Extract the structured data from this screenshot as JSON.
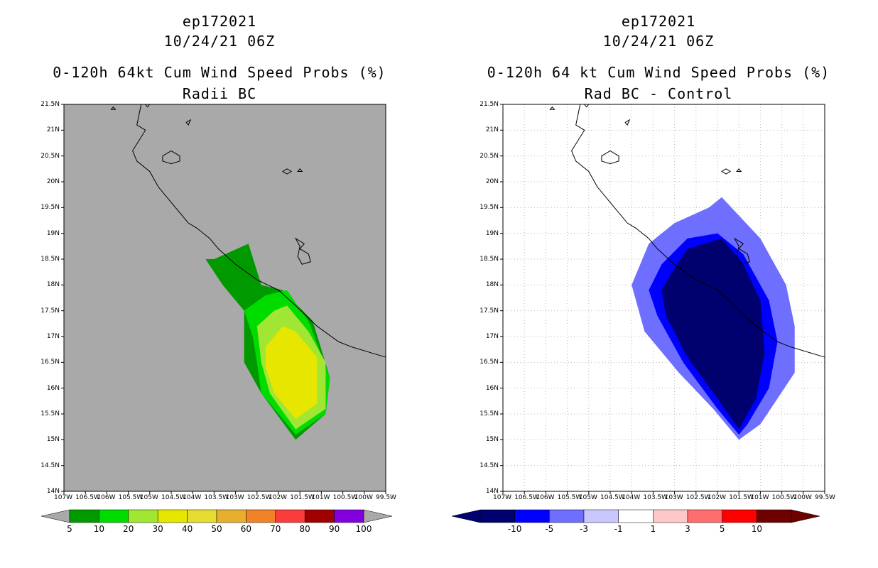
{
  "colors": {
    "land_gray": "#a9a9a9",
    "prob_scale": [
      "#009a00",
      "#00dc00",
      "#a0e632",
      "#e6e600",
      "#e6dc32",
      "#e6af2d",
      "#f08228",
      "#fa3c3c",
      "#a00000",
      "#8200dc"
    ],
    "diff_scale": [
      "#00006e",
      "#0000ff",
      "#6e6eff",
      "#c8c8ff",
      "#ffffff",
      "#ffc8c8",
      "#ff6e6e",
      "#ff0000",
      "#6e0000"
    ]
  },
  "chart_data": [
    {
      "type": "filled-contour-map",
      "title_lines": [
        "ep172021",
        "10/24/21 06Z",
        "0-120h 64kt Cum Wind Speed Probs (%)",
        "Radii BC"
      ],
      "lat_range": [
        14,
        21.5
      ],
      "lon_range": [
        -107,
        -99.5
      ],
      "ytick_labels": [
        "21.5N",
        "21N",
        "20.5N",
        "20N",
        "19.5N",
        "19N",
        "18.5N",
        "18N",
        "17.5N",
        "17N",
        "16.5N",
        "16N",
        "15.5N",
        "15N",
        "14.5N",
        "14N"
      ],
      "xtick_labels": [
        "107W",
        "106.5W",
        "106W",
        "105.5W",
        "105W",
        "104.5W",
        "104W",
        "103.5W",
        "103W",
        "102.5W",
        "102W",
        "101.5W",
        "101W",
        "100.5W",
        "100W",
        "99.5W"
      ],
      "grid": false,
      "colorbar": {
        "labels": [
          "5",
          "10",
          "20",
          "30",
          "40",
          "50",
          "60",
          "70",
          "80",
          "90",
          "100"
        ],
        "levels": [
          5,
          10,
          20,
          30,
          40,
          50,
          60,
          70,
          80,
          90,
          100
        ]
      },
      "contours": [
        {
          "level": 5,
          "polygon": [
            [
              -103.5,
              18.5
            ],
            [
              -102.7,
              18.8
            ],
            [
              -102.4,
              18.0
            ],
            [
              -101.9,
              17.9
            ],
            [
              -101.2,
              17.3
            ],
            [
              -100.8,
              16.2
            ],
            [
              -100.9,
              15.5
            ],
            [
              -101.6,
              15.0
            ],
            [
              -102.4,
              15.9
            ],
            [
              -102.8,
              16.5
            ],
            [
              -102.8,
              17.5
            ],
            [
              -103.3,
              18.0
            ],
            [
              -103.7,
              18.5
            ]
          ]
        },
        {
          "level": 10,
          "polygon": [
            [
              -102.8,
              17.5
            ],
            [
              -102.3,
              17.8
            ],
            [
              -101.8,
              17.9
            ],
            [
              -101.3,
              17.3
            ],
            [
              -100.8,
              16.2
            ],
            [
              -100.9,
              15.5
            ],
            [
              -101.6,
              15.1
            ],
            [
              -102.4,
              15.9
            ],
            [
              -102.5,
              16.5
            ],
            [
              -102.6,
              17.0
            ]
          ]
        },
        {
          "level": 20,
          "polygon": [
            [
              -102.5,
              17.2
            ],
            [
              -102.1,
              17.5
            ],
            [
              -101.8,
              17.6
            ],
            [
              -101.3,
              17.1
            ],
            [
              -100.9,
              16.5
            ],
            [
              -100.9,
              15.6
            ],
            [
              -101.6,
              15.2
            ],
            [
              -102.2,
              15.9
            ],
            [
              -102.4,
              16.5
            ]
          ]
        },
        {
          "level": 30,
          "polygon": [
            [
              -102.3,
              16.8
            ],
            [
              -101.9,
              17.2
            ],
            [
              -101.6,
              17.1
            ],
            [
              -101.1,
              16.6
            ],
            [
              -101.1,
              15.7
            ],
            [
              -101.6,
              15.4
            ],
            [
              -102.1,
              15.9
            ],
            [
              -102.3,
              16.4
            ]
          ]
        }
      ]
    },
    {
      "type": "filled-contour-map",
      "title_lines": [
        "ep172021",
        "10/24/21 06Z",
        "0-120h 64 kt Cum Wind Speed Probs (%)",
        "Rad BC - Control"
      ],
      "lat_range": [
        14,
        21.5
      ],
      "lon_range": [
        -107,
        -99.5
      ],
      "ytick_labels": [
        "21.5N",
        "21N",
        "20.5N",
        "20N",
        "19.5N",
        "19N",
        "18.5N",
        "18N",
        "17.5N",
        "17N",
        "16.5N",
        "16N",
        "15.5N",
        "15N",
        "14.5N",
        "14N"
      ],
      "xtick_labels": [
        "107W",
        "106.5W",
        "106W",
        "105.5W",
        "105W",
        "104.5W",
        "104W",
        "103.5W",
        "103W",
        "102.5W",
        "102W",
        "101.5W",
        "101W",
        "100.5W",
        "100W",
        "99.5W"
      ],
      "grid": true,
      "colorbar": {
        "labels": [
          "-10",
          "-5",
          "-3",
          "-1",
          "1",
          "3",
          "5",
          "10"
        ],
        "levels": [
          -10,
          -5,
          -3,
          -1,
          1,
          3,
          5,
          10
        ]
      },
      "contours": [
        {
          "level": -1,
          "polygon": [
            [
              -103.6,
              18.8
            ],
            [
              -103.0,
              19.2
            ],
            [
              -102.2,
              19.5
            ],
            [
              -101.9,
              19.7
            ],
            [
              -101.0,
              18.9
            ],
            [
              -100.4,
              18.0
            ],
            [
              -100.2,
              17.2
            ],
            [
              -100.2,
              16.3
            ],
            [
              -100.6,
              15.8
            ],
            [
              -101.0,
              15.3
            ],
            [
              -101.5,
              15.0
            ],
            [
              -102.1,
              15.6
            ],
            [
              -102.9,
              16.3
            ],
            [
              -103.7,
              17.1
            ],
            [
              -104.0,
              18.0
            ]
          ]
        },
        {
          "level": -3,
          "polygon": [
            [
              -103.3,
              18.4
            ],
            [
              -102.7,
              18.9
            ],
            [
              -102.0,
              19.0
            ],
            [
              -101.4,
              18.6
            ],
            [
              -100.8,
              17.7
            ],
            [
              -100.6,
              16.9
            ],
            [
              -100.8,
              16.0
            ],
            [
              -101.3,
              15.3
            ],
            [
              -101.5,
              15.1
            ],
            [
              -102.0,
              15.6
            ],
            [
              -102.8,
              16.5
            ],
            [
              -103.4,
              17.4
            ],
            [
              -103.6,
              17.9
            ]
          ]
        },
        {
          "level": -5,
          "polygon": [
            [
              -103.1,
              18.2
            ],
            [
              -102.7,
              18.7
            ],
            [
              -101.9,
              18.9
            ],
            [
              -101.4,
              18.4
            ],
            [
              -101.0,
              17.7
            ],
            [
              -100.9,
              16.7
            ],
            [
              -101.1,
              15.8
            ],
            [
              -101.5,
              15.2
            ],
            [
              -102.0,
              15.8
            ],
            [
              -102.7,
              16.6
            ],
            [
              -103.2,
              17.4
            ],
            [
              -103.3,
              17.9
            ]
          ]
        },
        {
          "level": -10,
          "polygon": [
            [
              -102.8,
              18.4
            ],
            [
              -102.4,
              18.6
            ],
            [
              -101.8,
              18.4
            ],
            [
              -101.3,
              17.7
            ],
            [
              -101.1,
              16.7
            ],
            [
              -101.2,
              15.8
            ],
            [
              -101.5,
              15.3
            ],
            [
              -101.9,
              15.9
            ],
            [
              -102.5,
              16.8
            ],
            [
              -102.9,
              17.5
            ]
          ]
        }
      ]
    }
  ]
}
